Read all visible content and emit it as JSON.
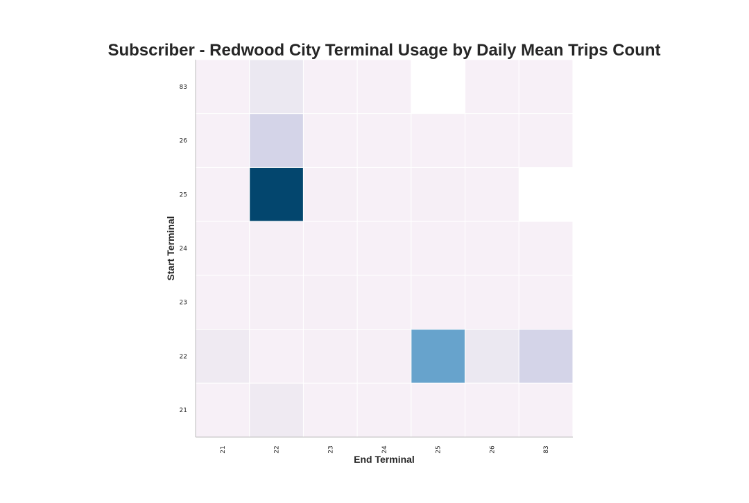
{
  "chart_data": {
    "type": "heatmap",
    "title": "Subscriber - Redwood City Terminal Usage by Daily Mean Trips Count",
    "xlabel": "End Terminal",
    "ylabel": "Start Terminal",
    "x_categories": [
      "21",
      "22",
      "23",
      "24",
      "25",
      "26",
      "83"
    ],
    "y_categories": [
      "83",
      "26",
      "25",
      "24",
      "23",
      "22",
      "21"
    ],
    "values": [
      [
        1.0,
        1.7,
        1.0,
        1.0,
        null,
        1.0,
        1.0
      ],
      [
        1.0,
        2.2,
        1.0,
        1.0,
        1.0,
        1.0,
        1.0
      ],
      [
        1.0,
        9.0,
        1.1,
        1.0,
        1.1,
        1.0,
        null
      ],
      [
        1.0,
        1.1,
        1.0,
        1.0,
        1.0,
        1.0,
        1.0
      ],
      [
        1.0,
        1.1,
        1.1,
        1.0,
        1.0,
        1.0,
        1.0
      ],
      [
        1.6,
        1.0,
        1.1,
        1.1,
        5.0,
        1.7,
        2.2
      ],
      [
        1.0,
        1.6,
        1.0,
        1.0,
        1.0,
        1.0,
        1.0
      ]
    ],
    "colormap": "PuBu",
    "value_range": [
      1.0,
      9.0
    ],
    "grid": false
  }
}
